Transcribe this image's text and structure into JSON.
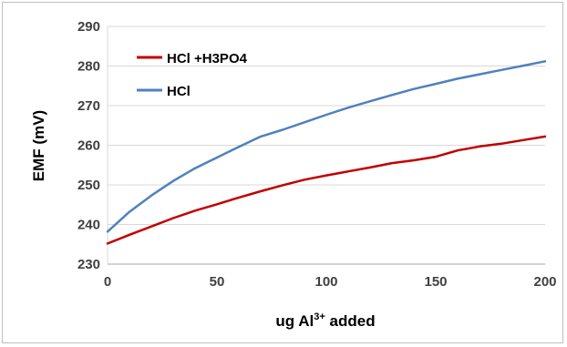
{
  "chart_data": {
    "type": "line",
    "xlabel": "ug Al",
    "xlabel_sup": "3+",
    "xlabel_suffix": " added",
    "ylabel": "EMF (mV)",
    "xlim": [
      0,
      200
    ],
    "ylim": [
      230,
      290
    ],
    "xticks": [
      0,
      50,
      100,
      150,
      200
    ],
    "yticks": [
      230,
      240,
      250,
      260,
      270,
      280,
      290
    ],
    "x_tick_labels": [
      "0",
      "50",
      "100",
      "150",
      "200"
    ],
    "y_tick_labels": [
      "230",
      "240",
      "250",
      "260",
      "270",
      "280",
      "290"
    ],
    "grid": "horizontal",
    "legend_position": "top-left",
    "series": [
      {
        "name": "HCl +H3PO4",
        "color": "#c00000",
        "x": [
          0,
          10,
          20,
          30,
          40,
          50,
          60,
          70,
          80,
          90,
          100,
          110,
          120,
          130,
          140,
          150,
          160,
          170,
          180,
          190,
          200
        ],
        "y": [
          235.2,
          237.4,
          239.5,
          241.6,
          243.5,
          245.1,
          246.8,
          248.4,
          249.9,
          251.3,
          252.4,
          253.4,
          254.4,
          255.5,
          256.2,
          257.1,
          258.7,
          259.7,
          260.4,
          261.3,
          262.2
        ]
      },
      {
        "name": "HCl",
        "color": "#4f81bd",
        "x": [
          0,
          10,
          20,
          30,
          40,
          50,
          60,
          70,
          80,
          90,
          100,
          110,
          120,
          130,
          140,
          150,
          160,
          170,
          180,
          190,
          200
        ],
        "y": [
          238.2,
          243.2,
          247.3,
          251.0,
          254.2,
          256.9,
          259.6,
          262.2,
          263.9,
          265.8,
          267.7,
          269.5,
          271.1,
          272.7,
          274.2,
          275.5,
          276.8,
          277.9,
          279.0,
          280.1,
          281.2
        ]
      }
    ]
  }
}
